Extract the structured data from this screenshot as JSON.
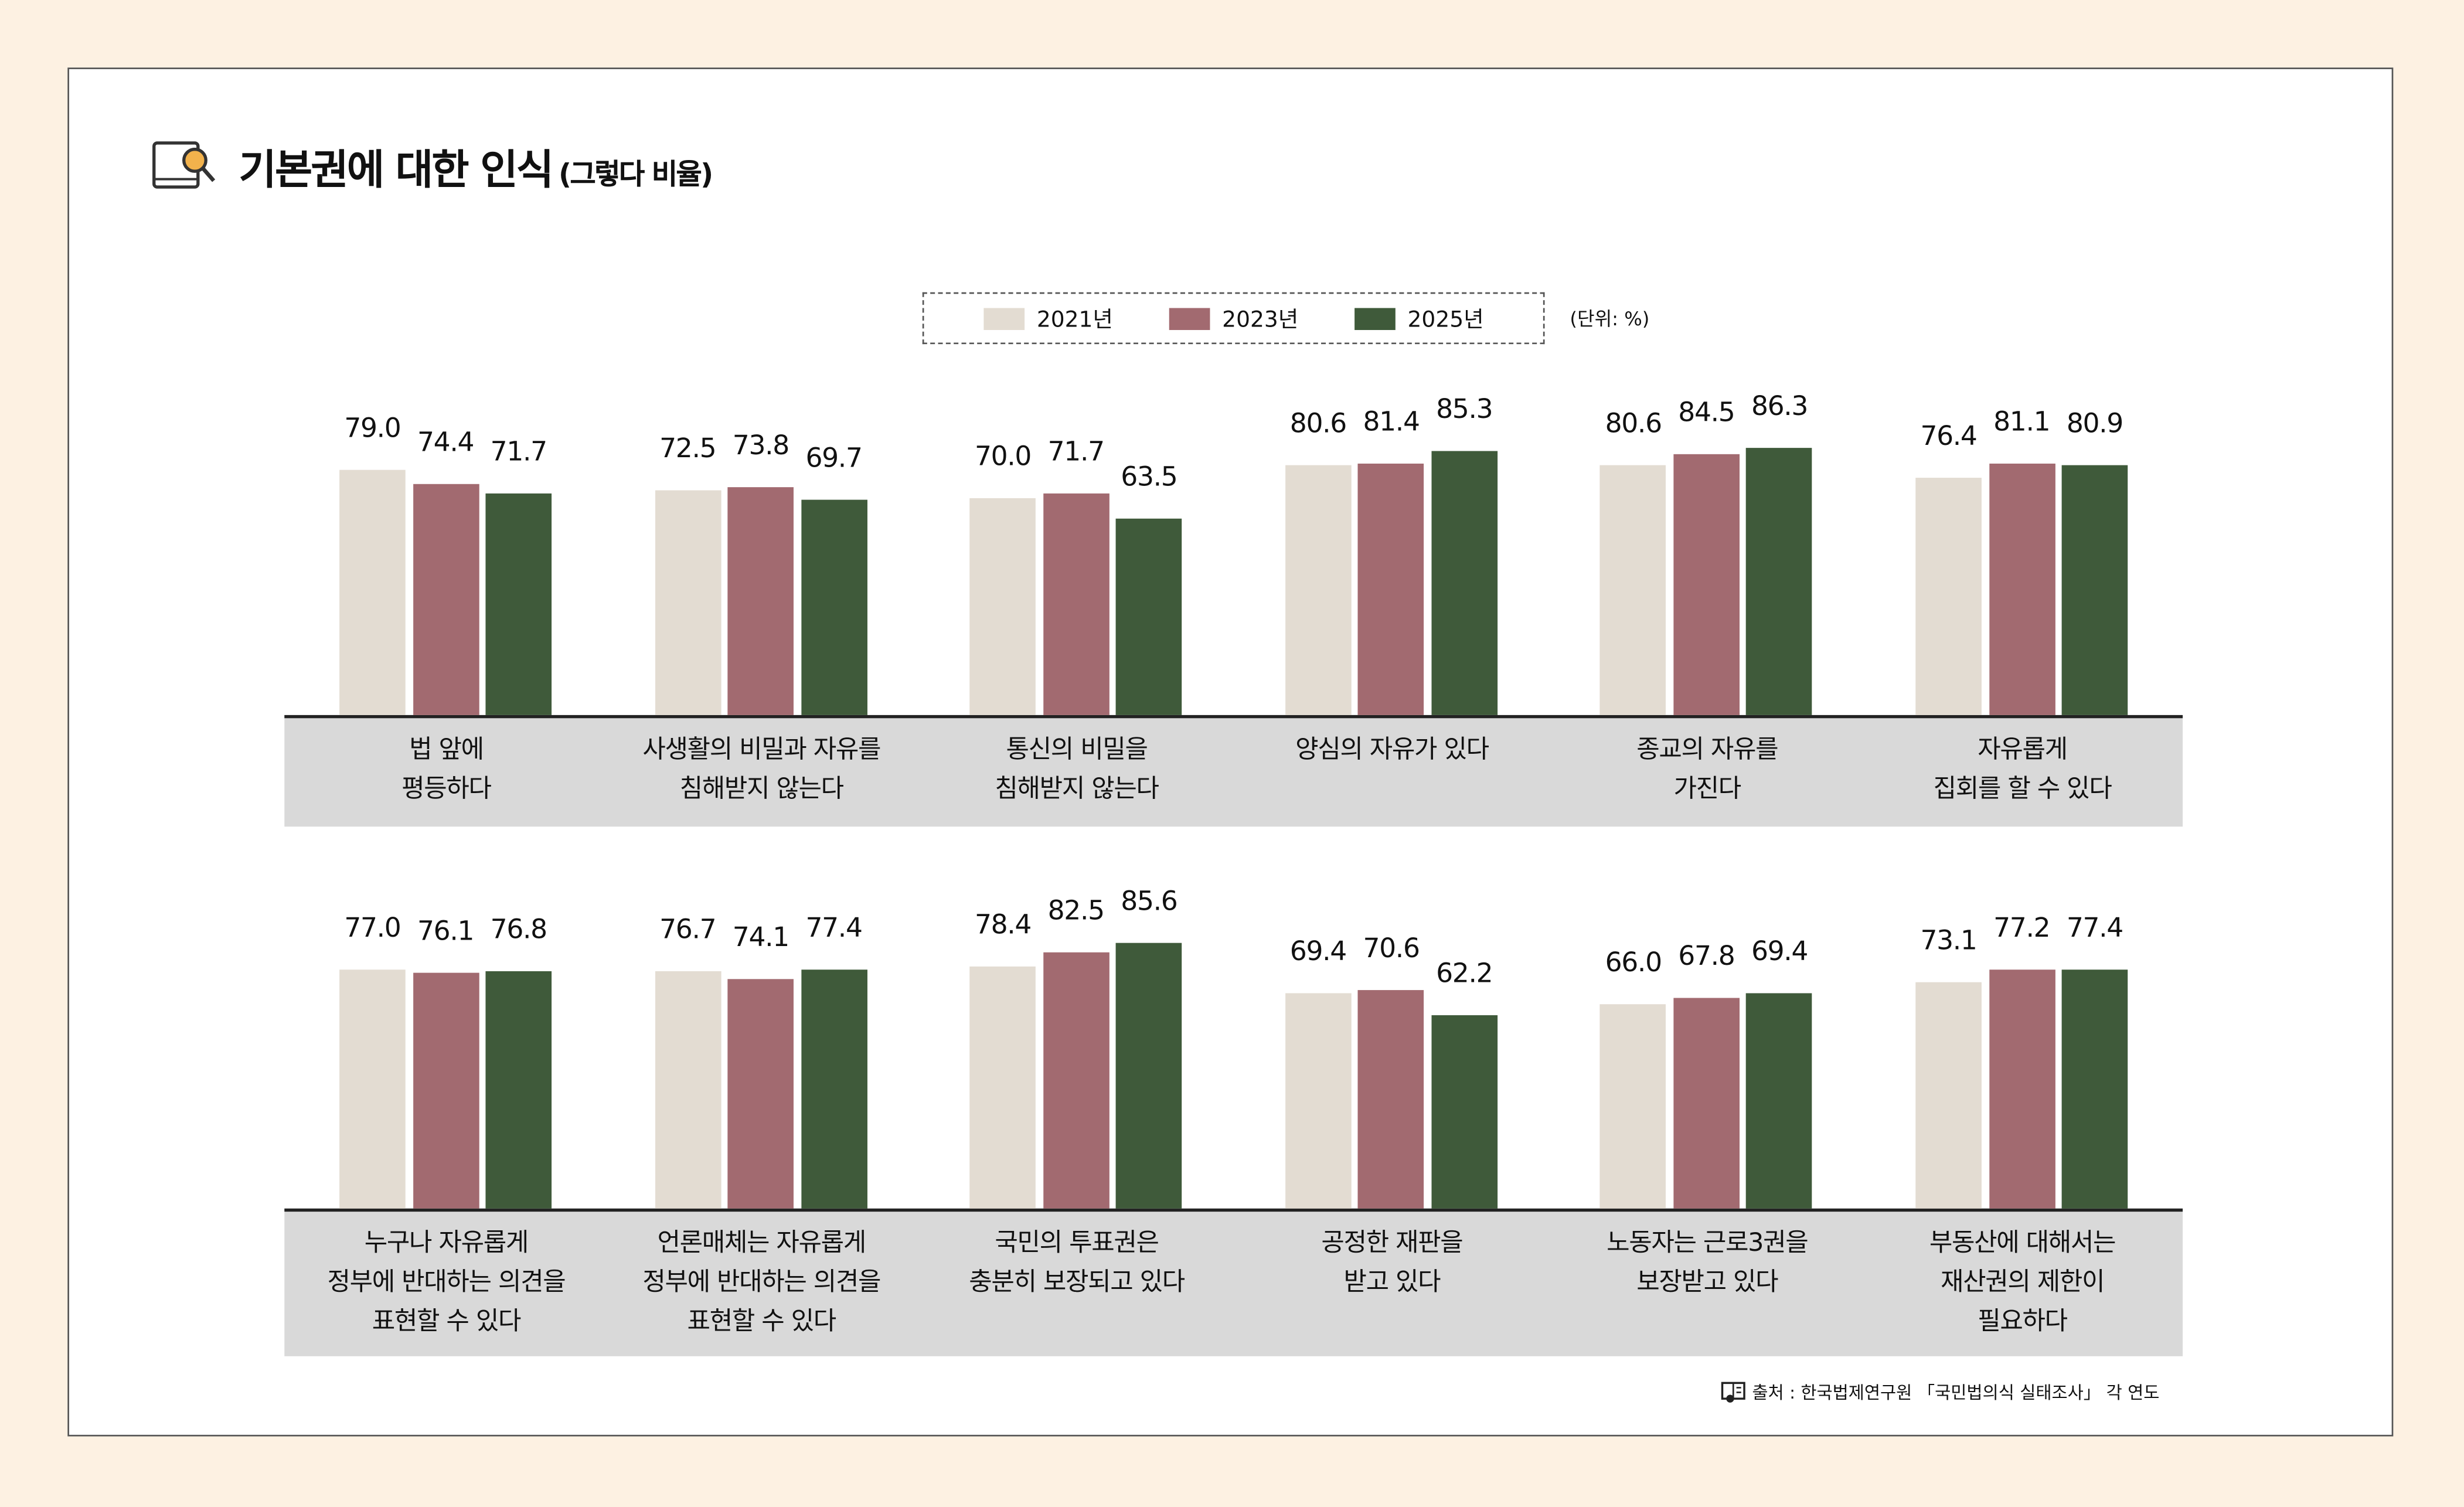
{
  "title": "기본권에 대한 인식",
  "subtitle": "(그렇다 비율)",
  "unit": "(단위: %)",
  "source": "출처 : 한국법제연구원 「국민법의식 실태조사」 각 연도",
  "colors": {
    "2021년": "#e3dcd2",
    "2023년": "#a26a70",
    "2025년": "#3f5a3a",
    "strip": "#d9d9d9",
    "background": "#fdf1e2"
  },
  "chart_data": [
    {
      "type": "bar",
      "legend": [
        "2021년",
        "2023년",
        "2025년"
      ],
      "legend_position": "top",
      "categories": [
        "법 앞에\n평등하다",
        "사생활의 비밀과 자유를\n침해받지 않는다",
        "통신의 비밀을\n침해받지 않는다",
        "양심의 자유가 있다",
        "종교의 자유를\n가진다",
        "자유롭게\n집회를 할 수 있다"
      ],
      "series": [
        {
          "name": "2021년",
          "values": [
            79.0,
            72.5,
            70.0,
            80.6,
            80.6,
            76.4
          ]
        },
        {
          "name": "2023년",
          "values": [
            74.4,
            73.8,
            71.7,
            81.4,
            84.5,
            81.1
          ]
        },
        {
          "name": "2025년",
          "values": [
            71.7,
            69.7,
            63.5,
            85.3,
            86.3,
            80.9
          ]
        }
      ],
      "grid": false
    },
    {
      "type": "bar",
      "legend": [
        "2021년",
        "2023년",
        "2025년"
      ],
      "categories": [
        "누구나 자유롭게\n정부에 반대하는 의견을\n표현할 수 있다",
        "언론매체는 자유롭게\n정부에 반대하는 의견을\n표현할 수 있다",
        "국민의 투표권은\n충분히 보장되고 있다",
        "공정한 재판을\n받고 있다",
        "노동자는 근로3권을\n보장받고 있다",
        "부동산에 대해서는\n재산권의 제한이\n필요하다"
      ],
      "series": [
        {
          "name": "2021년",
          "values": [
            77.0,
            76.7,
            78.4,
            69.4,
            66.0,
            73.1
          ]
        },
        {
          "name": "2023년",
          "values": [
            76.1,
            74.1,
            82.5,
            70.6,
            67.8,
            77.2
          ]
        },
        {
          "name": "2025년",
          "values": [
            76.8,
            77.4,
            85.6,
            62.2,
            69.4,
            77.4
          ]
        }
      ],
      "grid": false
    }
  ]
}
